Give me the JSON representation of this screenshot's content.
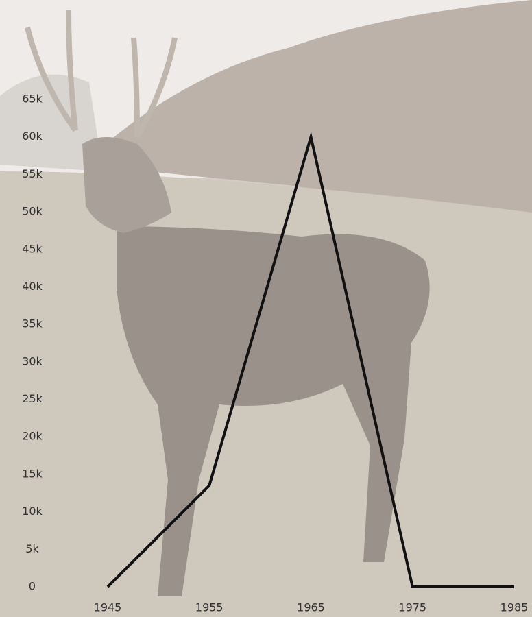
{
  "chart_data": {
    "type": "line",
    "x": [
      1945,
      1955,
      1965,
      1975,
      1985
    ],
    "values": [
      0,
      13500,
      60000,
      0,
      0
    ],
    "color": "#111111",
    "xlim": [
      1945,
      1985
    ],
    "xticks": [
      1945,
      1955,
      1965,
      1975,
      1985
    ],
    "ylim": [
      0,
      65000
    ],
    "yticks": [
      0,
      {
        "value": 5000,
        "label": "5k"
      },
      {
        "value": 10000,
        "label": "10k"
      },
      {
        "value": 15000,
        "label": "15k"
      },
      {
        "value": 20000,
        "label": "20k"
      },
      {
        "value": 25000,
        "label": "25k"
      },
      {
        "value": 30000,
        "label": "30k"
      },
      {
        "value": 35000,
        "label": "35k"
      },
      {
        "value": 40000,
        "label": "40k"
      },
      {
        "value": 45000,
        "label": "45k"
      },
      {
        "value": 50000,
        "label": "50k"
      },
      {
        "value": 55000,
        "label": "55k"
      },
      {
        "value": 60000,
        "label": "60k"
      },
      {
        "value": 65000,
        "label": "65k"
      }
    ],
    "grid": false
  }
}
